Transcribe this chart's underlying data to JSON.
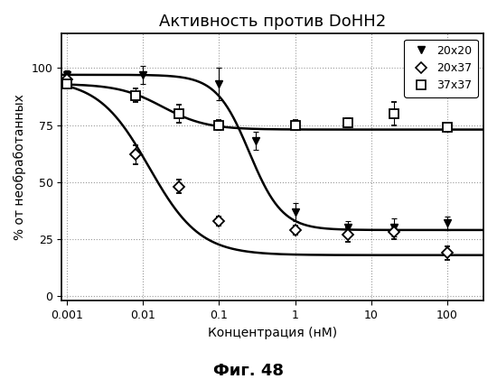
{
  "title": "Активность против DoHH2",
  "xlabel": "Концентрация (нМ)",
  "ylabel": "% от необработанных",
  "caption": "Фиг. 48",
  "xlim": [
    0.00085,
    300
  ],
  "ylim": [
    -2,
    115
  ],
  "yticks": [
    0,
    25,
    50,
    75,
    100
  ],
  "xticks": [
    0.001,
    0.01,
    0.1,
    1,
    10,
    100
  ],
  "xtick_labels": [
    "0.001",
    "0.01",
    "0.1",
    "1",
    "10",
    "100"
  ],
  "series": [
    {
      "label": "20x20",
      "marker": "v",
      "fillstyle": "full",
      "x": [
        0.001,
        0.01,
        0.1,
        0.3,
        1.0,
        5.0,
        20.0,
        100.0
      ],
      "y": [
        97,
        97,
        93,
        68,
        37,
        30,
        30,
        32
      ],
      "yerr": [
        2,
        4,
        7,
        4,
        4,
        3,
        4,
        3
      ],
      "curve_top": 97,
      "curve_bottom": 29,
      "curve_ec50": 0.25,
      "curve_hill": 2.0
    },
    {
      "label": "20x37",
      "marker": "D",
      "fillstyle": "none",
      "x": [
        0.001,
        0.008,
        0.03,
        0.1,
        1.0,
        5.0,
        20.0,
        100.0
      ],
      "y": [
        95,
        62,
        48,
        33,
        29,
        27,
        28,
        19
      ],
      "yerr": [
        3,
        4,
        3,
        2,
        2,
        3,
        3,
        3
      ],
      "curve_top": 95,
      "curve_bottom": 18,
      "curve_ec50": 0.012,
      "curve_hill": 1.3
    },
    {
      "label": "37x37",
      "marker": "s",
      "fillstyle": "none",
      "x": [
        0.001,
        0.008,
        0.03,
        0.1,
        1.0,
        5.0,
        20.0,
        100.0
      ],
      "y": [
        93,
        88,
        80,
        75,
        75,
        76,
        80,
        74
      ],
      "yerr": [
        2,
        3,
        4,
        2,
        2,
        2,
        5,
        2
      ],
      "curve_top": 93,
      "curve_bottom": 73,
      "curve_ec50": 0.018,
      "curve_hill": 1.5
    }
  ],
  "background_color": "#ffffff",
  "grid_color": "#999999",
  "title_fontsize": 13,
  "label_fontsize": 10,
  "tick_fontsize": 9,
  "legend_fontsize": 9,
  "caption_fontsize": 13
}
